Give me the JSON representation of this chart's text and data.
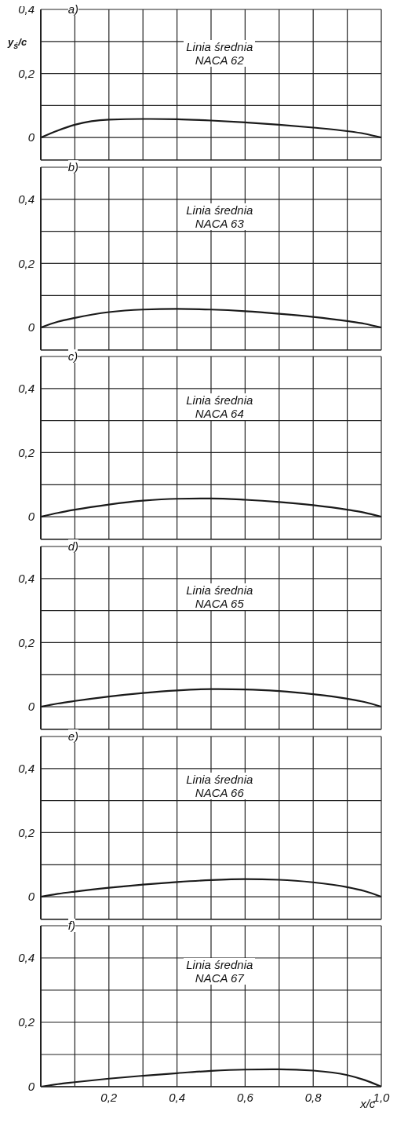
{
  "chart_data": [
    {
      "type": "line",
      "ylabel": "y$_{ś}$/c",
      "annotations": [
        "a)",
        "Linia średnia",
        "NACA 62"
      ],
      "x": [
        0,
        0.05,
        0.1,
        0.2,
        0.3,
        0.4,
        0.5,
        0.6,
        0.7,
        0.8,
        0.9,
        0.95,
        1.0
      ],
      "series": [
        {
          "color": "#1a1a1a",
          "values": [
            0,
            0.022,
            0.04,
            0.056,
            0.058,
            0.057,
            0.053,
            0.047,
            0.04,
            0.031,
            0.02,
            0.012,
            0
          ]
        }
      ],
      "xlim": [
        0,
        1
      ],
      "xticks": [
        {
          "value": 0,
          "label": null
        },
        {
          "value": 0.1,
          "label": null
        },
        {
          "value": 0.2,
          "label": null
        },
        {
          "value": 0.3,
          "label": null
        },
        {
          "value": 0.4,
          "label": null
        },
        {
          "value": 0.5,
          "label": null
        },
        {
          "value": 0.6,
          "label": null
        },
        {
          "value": 0.7,
          "label": null
        },
        {
          "value": 0.8,
          "label": null
        },
        {
          "value": 0.9,
          "label": null
        },
        {
          "value": 1,
          "label": null
        }
      ],
      "ylim": [
        -0.07,
        0.4
      ],
      "yticks": [
        {
          "value": 0,
          "label": "0"
        },
        {
          "value": 0.1,
          "label": null
        },
        {
          "value": 0.2,
          "label": "0,2"
        },
        {
          "value": 0.3,
          "label": null
        },
        {
          "value": 0.4,
          "label": "0,4"
        }
      ],
      "grid": true,
      "tick_labels": "y"
    },
    {
      "type": "line",
      "annotations": [
        "b)",
        "Linia średnia",
        "NACA 63"
      ],
      "x": [
        0,
        0.05,
        0.1,
        0.2,
        0.3,
        0.4,
        0.5,
        0.6,
        0.7,
        0.8,
        0.9,
        0.95,
        1.0
      ],
      "series": [
        {
          "color": "#1a1a1a",
          "values": [
            0,
            0.018,
            0.03,
            0.048,
            0.056,
            0.058,
            0.056,
            0.051,
            0.043,
            0.033,
            0.02,
            0.012,
            0
          ]
        }
      ],
      "xlim": [
        0,
        1
      ],
      "xticks": [
        {
          "value": 0,
          "label": null
        },
        {
          "value": 0.1,
          "label": null
        },
        {
          "value": 0.2,
          "label": null
        },
        {
          "value": 0.3,
          "label": null
        },
        {
          "value": 0.4,
          "label": null
        },
        {
          "value": 0.5,
          "label": null
        },
        {
          "value": 0.6,
          "label": null
        },
        {
          "value": 0.7,
          "label": null
        },
        {
          "value": 0.8,
          "label": null
        },
        {
          "value": 0.9,
          "label": null
        },
        {
          "value": 1,
          "label": null
        }
      ],
      "ylim": [
        -0.07,
        0.5
      ],
      "yticks": [
        {
          "value": 0,
          "label": "0"
        },
        {
          "value": 0.1,
          "label": null
        },
        {
          "value": 0.2,
          "label": "0,2"
        },
        {
          "value": 0.3,
          "label": null
        },
        {
          "value": 0.4,
          "label": "0,4"
        },
        {
          "value": 0.5,
          "label": null
        }
      ],
      "grid": true,
      "tick_labels": "y"
    },
    {
      "type": "line",
      "annotations": [
        "c)",
        "Linia średnia",
        "NACA 64"
      ],
      "x": [
        0,
        0.05,
        0.1,
        0.2,
        0.3,
        0.4,
        0.5,
        0.6,
        0.7,
        0.8,
        0.9,
        0.95,
        1.0
      ],
      "series": [
        {
          "color": "#1a1a1a",
          "values": [
            0,
            0.012,
            0.022,
            0.038,
            0.05,
            0.056,
            0.057,
            0.053,
            0.046,
            0.036,
            0.022,
            0.013,
            0
          ]
        }
      ],
      "xlim": [
        0,
        1
      ],
      "xticks": [
        {
          "value": 0,
          "label": null
        },
        {
          "value": 0.1,
          "label": null
        },
        {
          "value": 0.2,
          "label": null
        },
        {
          "value": 0.3,
          "label": null
        },
        {
          "value": 0.4,
          "label": null
        },
        {
          "value": 0.5,
          "label": null
        },
        {
          "value": 0.6,
          "label": null
        },
        {
          "value": 0.7,
          "label": null
        },
        {
          "value": 0.8,
          "label": null
        },
        {
          "value": 0.9,
          "label": null
        },
        {
          "value": 1,
          "label": null
        }
      ],
      "ylim": [
        -0.07,
        0.5
      ],
      "yticks": [
        {
          "value": 0,
          "label": "0"
        },
        {
          "value": 0.1,
          "label": null
        },
        {
          "value": 0.2,
          "label": "0,2"
        },
        {
          "value": 0.3,
          "label": null
        },
        {
          "value": 0.4,
          "label": "0,4"
        },
        {
          "value": 0.5,
          "label": null
        }
      ],
      "grid": true,
      "tick_labels": "y"
    },
    {
      "type": "line",
      "annotations": [
        "d)",
        "Linia średnia",
        "NACA 65"
      ],
      "x": [
        0,
        0.05,
        0.1,
        0.2,
        0.3,
        0.4,
        0.5,
        0.6,
        0.7,
        0.8,
        0.9,
        0.95,
        1.0
      ],
      "series": [
        {
          "color": "#1a1a1a",
          "values": [
            0,
            0.01,
            0.018,
            0.032,
            0.043,
            0.051,
            0.055,
            0.054,
            0.049,
            0.039,
            0.025,
            0.015,
            0
          ]
        }
      ],
      "xlim": [
        0,
        1
      ],
      "xticks": [
        {
          "value": 0,
          "label": null
        },
        {
          "value": 0.1,
          "label": null
        },
        {
          "value": 0.2,
          "label": null
        },
        {
          "value": 0.3,
          "label": null
        },
        {
          "value": 0.4,
          "label": null
        },
        {
          "value": 0.5,
          "label": null
        },
        {
          "value": 0.6,
          "label": null
        },
        {
          "value": 0.7,
          "label": null
        },
        {
          "value": 0.8,
          "label": null
        },
        {
          "value": 0.9,
          "label": null
        },
        {
          "value": 1,
          "label": null
        }
      ],
      "ylim": [
        -0.07,
        0.5
      ],
      "yticks": [
        {
          "value": 0,
          "label": "0"
        },
        {
          "value": 0.1,
          "label": null
        },
        {
          "value": 0.2,
          "label": "0,2"
        },
        {
          "value": 0.3,
          "label": null
        },
        {
          "value": 0.4,
          "label": "0,4"
        },
        {
          "value": 0.5,
          "label": null
        }
      ],
      "grid": true,
      "tick_labels": "y"
    },
    {
      "type": "line",
      "annotations": [
        "e)",
        "Linia średnia",
        "NACA 66"
      ],
      "x": [
        0,
        0.05,
        0.1,
        0.2,
        0.3,
        0.4,
        0.5,
        0.6,
        0.7,
        0.8,
        0.9,
        0.95,
        1.0
      ],
      "series": [
        {
          "color": "#1a1a1a",
          "values": [
            0,
            0.009,
            0.016,
            0.028,
            0.038,
            0.046,
            0.052,
            0.055,
            0.053,
            0.045,
            0.03,
            0.018,
            0
          ]
        }
      ],
      "xlim": [
        0,
        1
      ],
      "xticks": [
        {
          "value": 0,
          "label": null
        },
        {
          "value": 0.1,
          "label": null
        },
        {
          "value": 0.2,
          "label": null
        },
        {
          "value": 0.3,
          "label": null
        },
        {
          "value": 0.4,
          "label": null
        },
        {
          "value": 0.5,
          "label": null
        },
        {
          "value": 0.6,
          "label": null
        },
        {
          "value": 0.7,
          "label": null
        },
        {
          "value": 0.8,
          "label": null
        },
        {
          "value": 0.9,
          "label": null
        },
        {
          "value": 1,
          "label": null
        }
      ],
      "ylim": [
        -0.07,
        0.5
      ],
      "yticks": [
        {
          "value": 0,
          "label": "0"
        },
        {
          "value": 0.1,
          "label": null
        },
        {
          "value": 0.2,
          "label": "0,2"
        },
        {
          "value": 0.3,
          "label": null
        },
        {
          "value": 0.4,
          "label": "0,4"
        },
        {
          "value": 0.5,
          "label": null
        }
      ],
      "grid": true,
      "tick_labels": "y"
    },
    {
      "type": "line",
      "xlabel": "x/c",
      "annotations": [
        "f)",
        "Linia średnia",
        "NACA 67"
      ],
      "x": [
        0,
        0.05,
        0.1,
        0.2,
        0.3,
        0.4,
        0.5,
        0.6,
        0.7,
        0.8,
        0.9,
        0.95,
        1.0
      ],
      "series": [
        {
          "color": "#1a1a1a",
          "values": [
            0,
            0.008,
            0.014,
            0.025,
            0.034,
            0.042,
            0.049,
            0.053,
            0.054,
            0.05,
            0.036,
            0.021,
            0
          ]
        }
      ],
      "xlim": [
        0,
        1
      ],
      "xticks": [
        {
          "value": 0,
          "label": null
        },
        {
          "value": 0.1,
          "label": null
        },
        {
          "value": 0.2,
          "label": "0,2"
        },
        {
          "value": 0.3,
          "label": null
        },
        {
          "value": 0.4,
          "label": "0,4"
        },
        {
          "value": 0.5,
          "label": null
        },
        {
          "value": 0.6,
          "label": "0,6"
        },
        {
          "value": 0.7,
          "label": null
        },
        {
          "value": 0.8,
          "label": "0,8"
        },
        {
          "value": 0.9,
          "label": null
        },
        {
          "value": 1,
          "label": "1,0"
        }
      ],
      "ylim": [
        0,
        0.5
      ],
      "yticks": [
        {
          "value": 0,
          "label": "0"
        },
        {
          "value": 0.1,
          "label": null
        },
        {
          "value": 0.2,
          "label": "0,2"
        },
        {
          "value": 0.3,
          "label": null
        },
        {
          "value": 0.4,
          "label": "0,4"
        },
        {
          "value": 0.5,
          "label": null
        }
      ],
      "grid": true
    }
  ]
}
